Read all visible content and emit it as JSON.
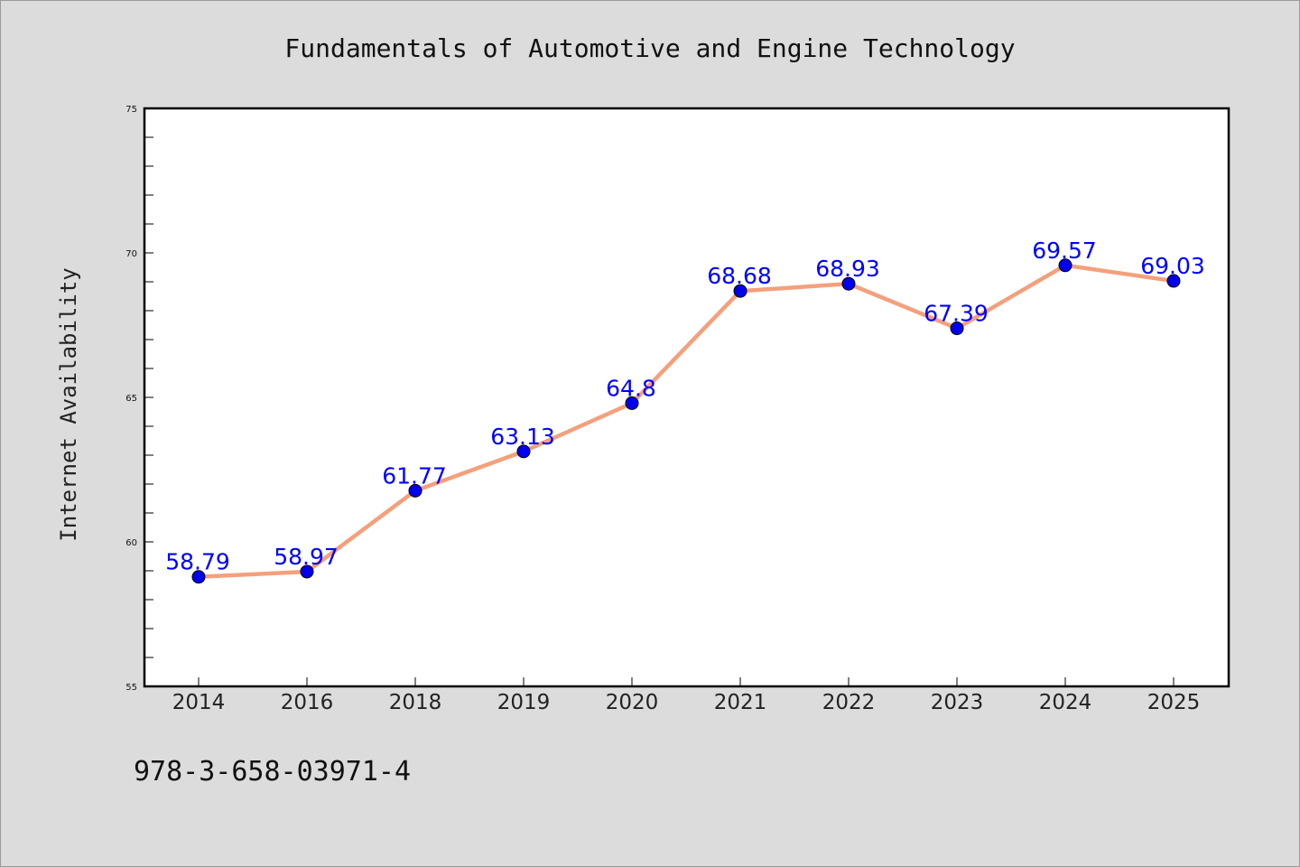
{
  "chart_data": {
    "type": "line",
    "title": "Fundamentals of Automotive and Engine Technology",
    "xlabel": "",
    "ylabel": "Internet Availability",
    "categories": [
      "2014",
      "2016",
      "2018",
      "2019",
      "2020",
      "2021",
      "2022",
      "2023",
      "2024",
      "2025"
    ],
    "series": [
      {
        "values": [
          58.79,
          58.97,
          61.77,
          63.13,
          64.8,
          68.68,
          68.93,
          67.39,
          69.57,
          69.03
        ],
        "labels": [
          "58.79",
          "58.97",
          "61.77",
          "63.13",
          "64.8",
          "68.68",
          "68.93",
          "67.39",
          "69.57",
          "69.03"
        ],
        "line_color": "#f4a07c",
        "marker_color": "#0000ee"
      }
    ],
    "ylim": [
      55,
      75
    ],
    "yticks": [
      "55",
      "60",
      "65",
      "70",
      "75"
    ],
    "grid": false,
    "legend": "none"
  },
  "footnote": "978-3-658-03971-4",
  "colors": {
    "background": "#dcdcdc",
    "plot_background": "#ffffff",
    "label_color": "#0000ff"
  }
}
